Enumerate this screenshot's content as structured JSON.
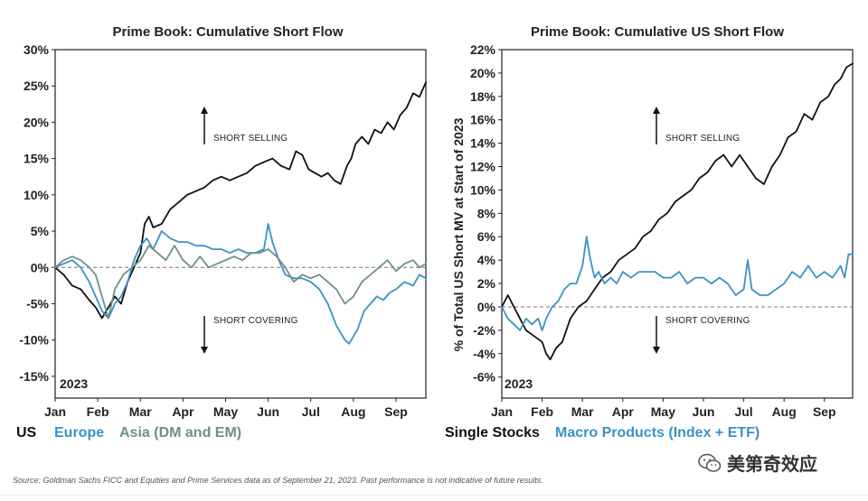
{
  "colors": {
    "us": "#111111",
    "europe": "#3a93c3",
    "asia": "#6e8f8b",
    "macro": "#3a93c3",
    "single": "#111111"
  },
  "source": "Source: Goldman Sachs FICC and Equities and Prime Services data as of September 21, 2023. Past performance is not indicative of future results.",
  "watermark": "美第奇效应",
  "chart_data": [
    {
      "type": "line",
      "title": "Prime Book: Cumulative Short Flow",
      "xlabel": "",
      "ylabel": "",
      "year_label": "2023",
      "x_range": [
        0,
        8.7
      ],
      "ylim": [
        -18,
        30
      ],
      "yticks": [
        30,
        25,
        20,
        15,
        10,
        5,
        0,
        -5,
        -10,
        -15
      ],
      "ytick_labels": [
        "30%",
        "25%",
        "20%",
        "15%",
        "10%",
        "5%",
        "0%",
        "-5%",
        "-10%",
        "-15%"
      ],
      "xtick_labels": [
        "Jan",
        "Feb",
        "Mar",
        "Apr",
        "May",
        "Jun",
        "Jul",
        "Aug",
        "Sep"
      ],
      "zero_line": true,
      "annotations": {
        "up": "SHORT SELLING",
        "down": "SHORT COVERING"
      },
      "series": [
        {
          "name": "US",
          "color": "#111111",
          "x": [
            0,
            0.2,
            0.4,
            0.6,
            0.8,
            0.95,
            1.1,
            1.25,
            1.4,
            1.55,
            1.7,
            1.85,
            2.0,
            2.1,
            2.2,
            2.3,
            2.5,
            2.7,
            2.9,
            3.1,
            3.3,
            3.5,
            3.7,
            3.9,
            4.1,
            4.3,
            4.5,
            4.7,
            4.9,
            5.1,
            5.3,
            5.5,
            5.65,
            5.8,
            5.95,
            6.1,
            6.25,
            6.4,
            6.55,
            6.7,
            6.85,
            6.95,
            7.05,
            7.2,
            7.35,
            7.5,
            7.65,
            7.8,
            7.95,
            8.1,
            8.25,
            8.4,
            8.55,
            8.7
          ],
          "y": [
            0,
            -1,
            -2.5,
            -3,
            -4.5,
            -5.5,
            -7,
            -5.5,
            -4,
            -5,
            -2,
            0,
            2,
            6,
            7,
            5.5,
            6,
            8,
            9,
            10,
            10.5,
            11,
            12,
            12.5,
            12,
            12.5,
            13,
            14,
            14.5,
            15,
            14,
            13.5,
            16,
            15.5,
            13.5,
            13,
            12.5,
            13,
            12,
            11.5,
            14,
            15,
            17,
            18,
            17,
            19,
            18.5,
            20,
            19,
            21,
            22,
            24,
            23.5,
            25.5
          ]
        },
        {
          "name": "Europe",
          "color": "#3a93c3",
          "x": [
            0,
            0.2,
            0.4,
            0.6,
            0.8,
            0.95,
            1.1,
            1.25,
            1.4,
            1.55,
            1.7,
            1.85,
            2.0,
            2.15,
            2.3,
            2.5,
            2.7,
            2.9,
            3.1,
            3.3,
            3.5,
            3.7,
            3.9,
            4.1,
            4.3,
            4.5,
            4.7,
            4.9,
            5.0,
            5.1,
            5.25,
            5.4,
            5.6,
            5.8,
            6.0,
            6.2,
            6.4,
            6.6,
            6.8,
            6.9,
            7.0,
            7.1,
            7.25,
            7.4,
            7.55,
            7.7,
            7.85,
            8.0,
            8.2,
            8.4,
            8.55,
            8.7
          ],
          "y": [
            0,
            0.5,
            1,
            0,
            -2,
            -4,
            -6,
            -7,
            -5,
            -4,
            -2,
            1,
            3,
            4,
            2.5,
            5,
            4,
            3.5,
            3.5,
            3,
            3,
            2.5,
            2.5,
            2,
            2.5,
            2,
            2,
            2.5,
            6,
            3.5,
            1,
            -1,
            -1.5,
            -1.5,
            -2,
            -3,
            -5,
            -8,
            -10,
            -10.5,
            -9.5,
            -8.5,
            -6,
            -5,
            -4,
            -4.5,
            -3.5,
            -3,
            -2,
            -2.5,
            -1,
            -1.5
          ]
        },
        {
          "name": "Asia (DM and EM)",
          "color": "#6e8f8b",
          "x": [
            0,
            0.2,
            0.4,
            0.6,
            0.8,
            0.95,
            1.1,
            1.25,
            1.4,
            1.6,
            1.8,
            2.0,
            2.2,
            2.4,
            2.6,
            2.8,
            3.0,
            3.2,
            3.4,
            3.6,
            3.8,
            4.0,
            4.2,
            4.4,
            4.6,
            4.8,
            5.0,
            5.2,
            5.4,
            5.6,
            5.8,
            6.0,
            6.2,
            6.4,
            6.6,
            6.8,
            7.0,
            7.2,
            7.4,
            7.6,
            7.8,
            8.0,
            8.2,
            8.4,
            8.55,
            8.7
          ],
          "y": [
            0,
            1,
            1.5,
            1,
            0,
            -1,
            -4,
            -7,
            -3,
            -1,
            0,
            1,
            3,
            2,
            1,
            3,
            1,
            0,
            1.5,
            0,
            0.5,
            1,
            1.5,
            1,
            2,
            2,
            2.5,
            1.5,
            0,
            -2,
            -1,
            -1.5,
            -1,
            -2,
            -3,
            -5,
            -4,
            -2,
            -1,
            0,
            1,
            -0.5,
            0.5,
            1,
            0,
            0.5
          ]
        }
      ]
    },
    {
      "type": "line",
      "title": "Prime Book: Cumulative US Short Flow",
      "xlabel": "",
      "ylabel": "% of Total US Short MV at Start of 2023",
      "year_label": "2023",
      "x_range": [
        0,
        8.7
      ],
      "ylim": [
        -7.8,
        22
      ],
      "yticks": [
        22,
        20,
        18,
        16,
        14,
        12,
        10,
        8,
        6,
        4,
        2,
        0,
        -2,
        -4,
        -6
      ],
      "ytick_labels": [
        "22%",
        "20%",
        "18%",
        "16%",
        "14%",
        "12%",
        "10%",
        "8%",
        "6%",
        "4%",
        "2%",
        "0%",
        "-2%",
        "-4%",
        "-6%"
      ],
      "xtick_labels": [
        "Jan",
        "Feb",
        "Mar",
        "Apr",
        "May",
        "Jun",
        "Jul",
        "Aug",
        "Sep"
      ],
      "zero_line": true,
      "annotations": {
        "up": "SHORT SELLING",
        "down": "SHORT COVERING"
      },
      "series": [
        {
          "name": "Single Stocks",
          "color": "#111111",
          "x": [
            0,
            0.15,
            0.3,
            0.45,
            0.6,
            0.8,
            1.0,
            1.1,
            1.2,
            1.35,
            1.5,
            1.7,
            1.9,
            2.1,
            2.3,
            2.5,
            2.7,
            2.9,
            3.1,
            3.3,
            3.5,
            3.7,
            3.9,
            4.1,
            4.3,
            4.5,
            4.7,
            4.9,
            5.1,
            5.3,
            5.5,
            5.7,
            5.9,
            6.1,
            6.3,
            6.5,
            6.7,
            6.9,
            7.1,
            7.3,
            7.5,
            7.7,
            7.9,
            8.1,
            8.25,
            8.4,
            8.55,
            8.7
          ],
          "y": [
            0,
            1,
            0,
            -1,
            -2,
            -2.5,
            -3,
            -4,
            -4.5,
            -3.5,
            -3,
            -1,
            0,
            0.5,
            1.5,
            2.5,
            3,
            4,
            4.5,
            5,
            6,
            6.5,
            7.5,
            8,
            9,
            9.5,
            10,
            11,
            11.5,
            12.5,
            13,
            12,
            13,
            12,
            11,
            10.5,
            12,
            13,
            14.5,
            15,
            16.5,
            16,
            17.5,
            18,
            19,
            19.5,
            20.5,
            20.8
          ]
        },
        {
          "name": "Macro Products (Index + ETF)",
          "color": "#3a93c3",
          "x": [
            0,
            0.15,
            0.3,
            0.45,
            0.6,
            0.75,
            0.9,
            1.0,
            1.1,
            1.25,
            1.4,
            1.55,
            1.7,
            1.85,
            2.0,
            2.1,
            2.2,
            2.3,
            2.4,
            2.55,
            2.7,
            2.85,
            3.0,
            3.2,
            3.4,
            3.6,
            3.8,
            4.0,
            4.2,
            4.4,
            4.6,
            4.8,
            5.0,
            5.2,
            5.4,
            5.6,
            5.8,
            6.0,
            6.1,
            6.2,
            6.4,
            6.6,
            6.8,
            7.0,
            7.2,
            7.4,
            7.6,
            7.8,
            8.0,
            8.2,
            8.4,
            8.5,
            8.6,
            8.7
          ],
          "y": [
            0,
            -1,
            -1.5,
            -2,
            -1,
            -1.5,
            -1,
            -2,
            -1,
            0,
            0.5,
            1.5,
            2,
            2,
            3.5,
            6,
            4,
            2.5,
            3,
            2,
            2.5,
            2,
            3,
            2.5,
            3,
            3,
            3,
            2.5,
            2.5,
            3,
            2,
            2.5,
            2.5,
            2,
            2.5,
            2,
            1,
            1.5,
            4,
            1.5,
            1,
            1,
            1.5,
            2,
            3,
            2.5,
            3.5,
            2.5,
            3,
            2.5,
            3.5,
            2.5,
            4.5,
            4.5
          ]
        }
      ]
    }
  ]
}
